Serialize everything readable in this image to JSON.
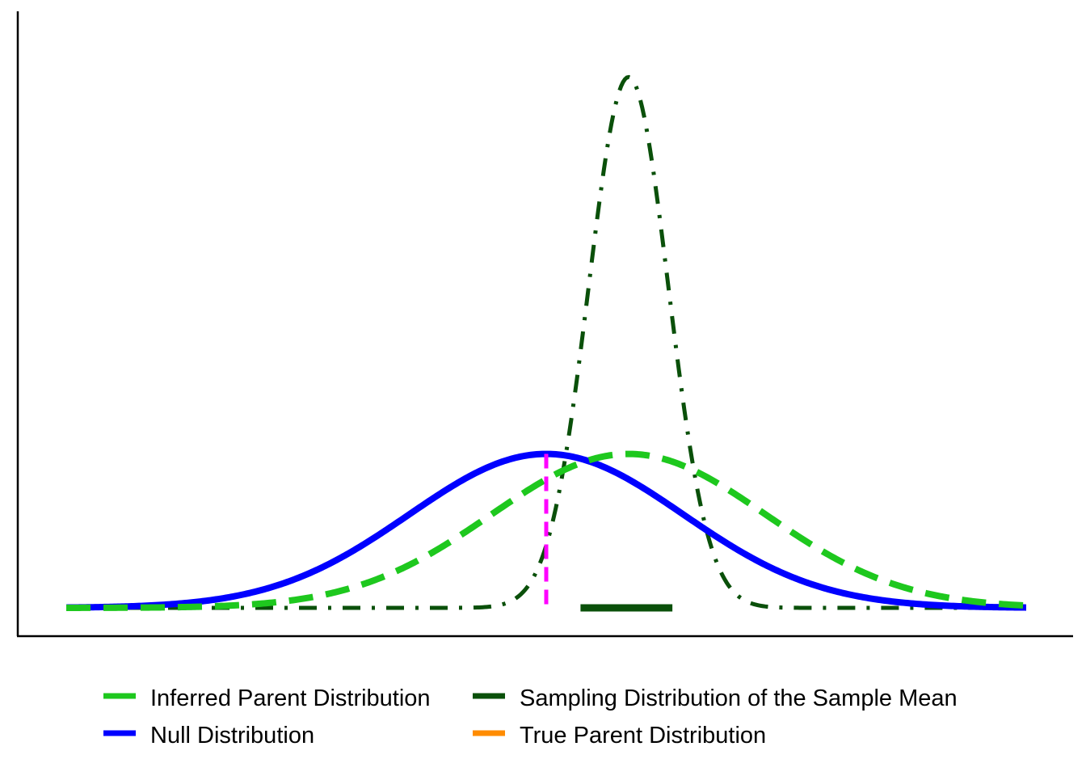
{
  "chart_data": {
    "type": "line",
    "title": "",
    "xlabel": "",
    "ylabel": "",
    "xlim": [
      -3.5,
      3.5
    ],
    "ylim": [
      0,
      1.5
    ],
    "grid": false,
    "legend_position": "bottom",
    "series": [
      {
        "name": "Inferred Parent Distribution",
        "kind": "normal_pdf",
        "mean": 0.6,
        "sd": 1.0,
        "color": "#1EC81E",
        "line_style": "dashed"
      },
      {
        "name": "Null Distribution",
        "kind": "normal_pdf",
        "mean": 0.0,
        "sd": 1.0,
        "color": "#0000FF",
        "line_style": "solid"
      },
      {
        "name": "Sampling Distribution of the Sample Mean",
        "kind": "normal_pdf",
        "mean": 0.6,
        "sd": 0.29,
        "color": "#0A500A",
        "line_style": "dotdash"
      },
      {
        "name": "True Parent Distribution",
        "kind": "normal_pdf",
        "color": "#FF8C00",
        "line_style": "solid",
        "drawn": false
      }
    ],
    "annotations": [
      {
        "kind": "vline",
        "x": 0.0,
        "y_top": 0.399,
        "color": "#FF00FF",
        "line_style": "dashed"
      },
      {
        "kind": "hsegment",
        "x0": 0.25,
        "x1": 0.92,
        "y": 0.0,
        "color": "#0A500A",
        "line_style": "solid"
      }
    ]
  },
  "legend": {
    "items": [
      {
        "label": "Inferred Parent Distribution",
        "color": "#1EC81E"
      },
      {
        "label": "Sampling Distribution of the Sample Mean",
        "color": "#0A500A"
      },
      {
        "label": "Null Distribution",
        "color": "#0000FF"
      },
      {
        "label": "True Parent Distribution",
        "color": "#FF8C00"
      }
    ]
  }
}
